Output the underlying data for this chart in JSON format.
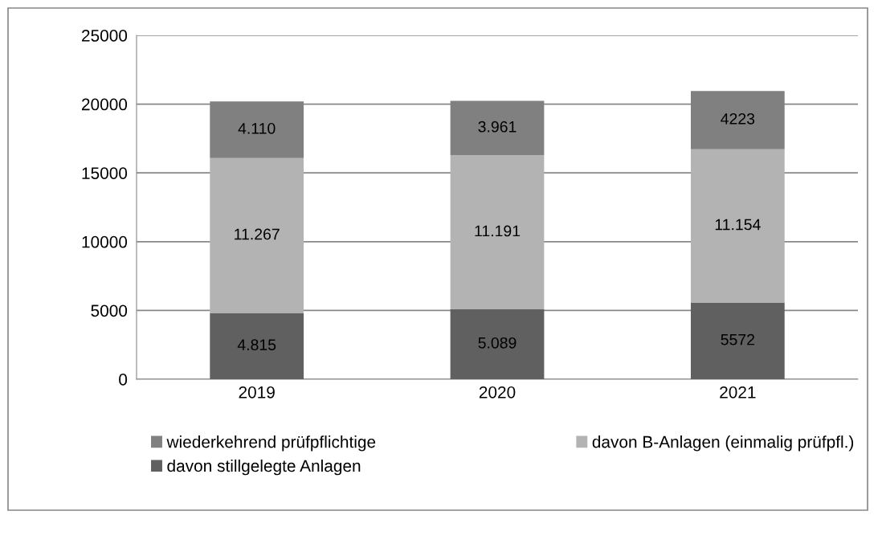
{
  "chart_data": {
    "type": "bar",
    "stacked": true,
    "categories": [
      "2019",
      "2020",
      "2021"
    ],
    "series": [
      {
        "name": "davon stillgelegte Anlagen",
        "color": "#606060",
        "values": [
          4815,
          5089,
          5572
        ],
        "value_labels": [
          "4.815",
          "5.089",
          "5572"
        ]
      },
      {
        "name": "davon B-Anlagen (einmalig prüfpfl.)",
        "color": "#b3b3b3",
        "values": [
          11267,
          11191,
          11154
        ],
        "value_labels": [
          "11.267",
          "11.191",
          "11.154"
        ]
      },
      {
        "name": "wiederkehrend prüfpflichtige",
        "color": "#808080",
        "values": [
          4110,
          3961,
          4223
        ],
        "value_labels": [
          "4.110",
          "3.961",
          "4223"
        ]
      }
    ],
    "ylim": [
      0,
      25000
    ],
    "yticks": [
      0,
      5000,
      10000,
      15000,
      20000,
      25000
    ],
    "grid": "y",
    "legend": "bottom"
  }
}
